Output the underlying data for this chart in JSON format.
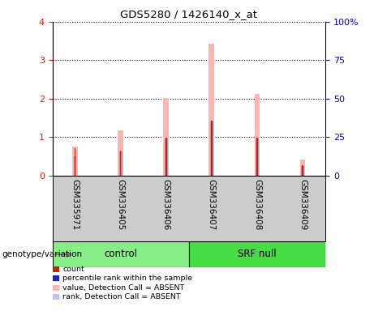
{
  "title": "GDS5280 / 1426140_x_at",
  "samples": [
    "GSM335971",
    "GSM336405",
    "GSM336406",
    "GSM336407",
    "GSM336408",
    "GSM336409"
  ],
  "pink_bar_values": [
    0.75,
    1.18,
    2.02,
    3.42,
    2.12,
    0.42
  ],
  "red_marker_values": [
    0.72,
    0.65,
    0.98,
    1.43,
    0.98,
    0.27
  ],
  "blue_marker_values": [
    0.5,
    0.62,
    0.96,
    1.4,
    0.96,
    0.25
  ],
  "left_ylim": [
    0,
    4
  ],
  "right_ylim": [
    0,
    100
  ],
  "left_yticks": [
    0,
    1,
    2,
    3,
    4
  ],
  "right_yticks": [
    0,
    25,
    50,
    75,
    100
  ],
  "right_yticklabels": [
    "0",
    "25",
    "50",
    "75",
    "100%"
  ],
  "left_ycolor": "#cc2200",
  "right_ycolor": "#0000cc",
  "ctrl_color": "#88ee88",
  "srf_color": "#44dd44",
  "group_label": "genotype/variation",
  "legend_labels": [
    "count",
    "percentile rank within the sample",
    "value, Detection Call = ABSENT",
    "rank, Detection Call = ABSENT"
  ],
  "legend_colors": [
    "#cc2200",
    "#2222cc",
    "#ffb3b3",
    "#c0c0ff"
  ],
  "pink_color": "#ffb3b3",
  "blue_marker_color": "#9999cc",
  "red_color": "#cc2200",
  "bg_color": "#cccccc",
  "bar_width": 0.12
}
